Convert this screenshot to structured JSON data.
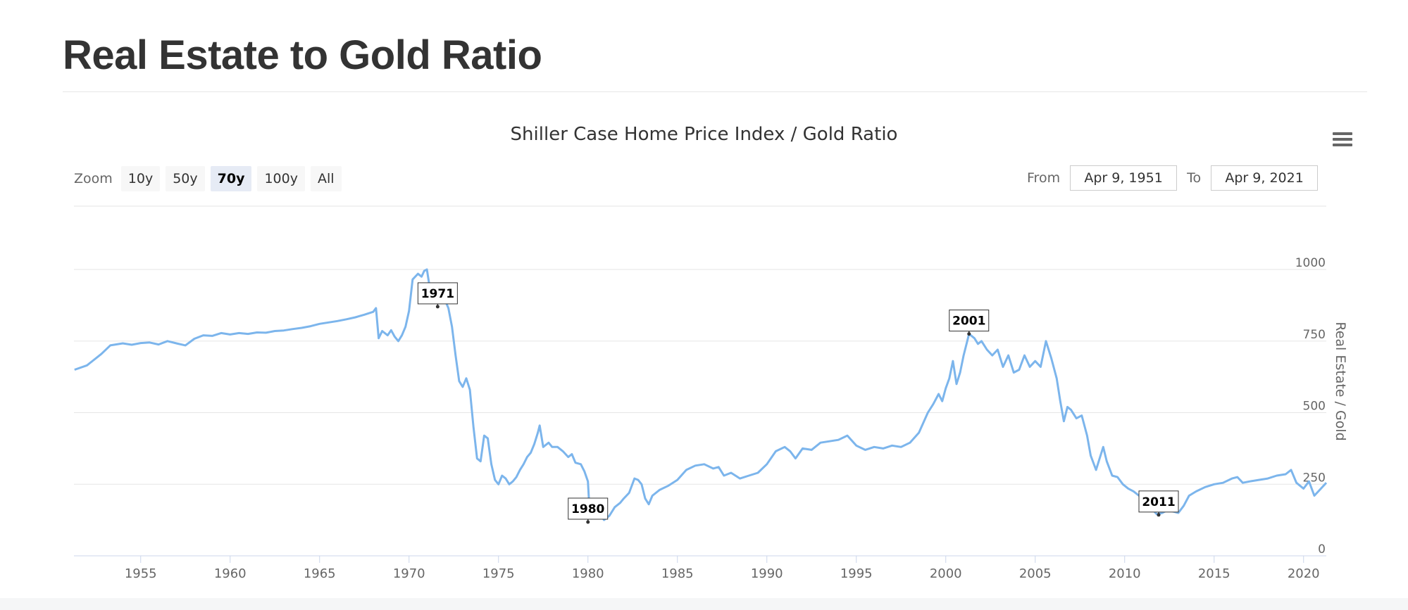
{
  "page": {
    "title": "Real Estate to Gold Ratio"
  },
  "controls": {
    "zoom_label": "Zoom",
    "zoom_buttons": [
      "10y",
      "50y",
      "70y",
      "100y",
      "All"
    ],
    "zoom_active": "70y",
    "from_label": "From",
    "from_value": "Apr 9, 1951",
    "to_label": "To",
    "to_value": "Apr 9, 2021",
    "menu_icon": "hamburger-menu-icon"
  },
  "chart_data": {
    "type": "line",
    "title": "Shiller Case Home Price Index / Gold Ratio",
    "xlabel": "",
    "ylabel": "Real Estate / Gold",
    "xlim": [
      1951.27,
      2021.27
    ],
    "ylim": [
      0,
      1000
    ],
    "x_ticks": [
      "1955",
      "1960",
      "1965",
      "1970",
      "1975",
      "1980",
      "1985",
      "1990",
      "1995",
      "2000",
      "2005",
      "2010",
      "2015",
      "2020"
    ],
    "y_ticks": [
      "0",
      "250",
      "500",
      "750",
      "1000"
    ],
    "grid": true,
    "line_color": "#7cb5ec",
    "series": [
      {
        "values": [
          [
            1951.3,
            650
          ],
          [
            1952.0,
            665
          ],
          [
            1952.8,
            705
          ],
          [
            1953.3,
            735
          ],
          [
            1954.0,
            742
          ],
          [
            1954.5,
            737
          ],
          [
            1955.0,
            743
          ],
          [
            1955.5,
            745
          ],
          [
            1956.0,
            738
          ],
          [
            1956.5,
            750
          ],
          [
            1957.0,
            742
          ],
          [
            1957.5,
            735
          ],
          [
            1958.0,
            758
          ],
          [
            1958.5,
            770
          ],
          [
            1959.0,
            768
          ],
          [
            1959.5,
            778
          ],
          [
            1960.0,
            773
          ],
          [
            1960.5,
            778
          ],
          [
            1961.0,
            775
          ],
          [
            1961.5,
            780
          ],
          [
            1962.0,
            779
          ],
          [
            1962.5,
            785
          ],
          [
            1963.0,
            787
          ],
          [
            1963.5,
            792
          ],
          [
            1964.0,
            796
          ],
          [
            1964.5,
            802
          ],
          [
            1965.0,
            810
          ],
          [
            1965.5,
            815
          ],
          [
            1966.0,
            820
          ],
          [
            1966.5,
            826
          ],
          [
            1967.0,
            833
          ],
          [
            1967.5,
            842
          ],
          [
            1968.0,
            852
          ],
          [
            1968.15,
            865
          ],
          [
            1968.3,
            760
          ],
          [
            1968.5,
            785
          ],
          [
            1968.8,
            770
          ],
          [
            1969.0,
            788
          ],
          [
            1969.2,
            765
          ],
          [
            1969.4,
            750
          ],
          [
            1969.6,
            770
          ],
          [
            1969.8,
            800
          ],
          [
            1970.0,
            855
          ],
          [
            1970.2,
            965
          ],
          [
            1970.5,
            985
          ],
          [
            1970.7,
            975
          ],
          [
            1970.85,
            995
          ],
          [
            1971.0,
            1000
          ],
          [
            1971.2,
            920
          ],
          [
            1971.5,
            895
          ],
          [
            1971.8,
            900
          ],
          [
            1972.0,
            895
          ],
          [
            1972.2,
            865
          ],
          [
            1972.4,
            800
          ],
          [
            1972.6,
            700
          ],
          [
            1972.8,
            610
          ],
          [
            1973.0,
            590
          ],
          [
            1973.2,
            620
          ],
          [
            1973.4,
            580
          ],
          [
            1973.6,
            450
          ],
          [
            1973.8,
            340
          ],
          [
            1974.0,
            330
          ],
          [
            1974.2,
            420
          ],
          [
            1974.4,
            410
          ],
          [
            1974.6,
            320
          ],
          [
            1974.8,
            265
          ],
          [
            1975.0,
            250
          ],
          [
            1975.2,
            280
          ],
          [
            1975.4,
            270
          ],
          [
            1975.6,
            250
          ],
          [
            1975.8,
            260
          ],
          [
            1976.0,
            275
          ],
          [
            1976.2,
            300
          ],
          [
            1976.4,
            320
          ],
          [
            1976.6,
            345
          ],
          [
            1976.8,
            360
          ],
          [
            1977.0,
            390
          ],
          [
            1977.2,
            430
          ],
          [
            1977.3,
            455
          ],
          [
            1977.5,
            380
          ],
          [
            1977.8,
            395
          ],
          [
            1978.0,
            380
          ],
          [
            1978.3,
            380
          ],
          [
            1978.6,
            365
          ],
          [
            1978.9,
            345
          ],
          [
            1979.1,
            355
          ],
          [
            1979.3,
            325
          ],
          [
            1979.6,
            320
          ],
          [
            1979.8,
            295
          ],
          [
            1980.0,
            260
          ],
          [
            1980.1,
            145
          ],
          [
            1980.2,
            130
          ],
          [
            1980.3,
            180
          ],
          [
            1980.6,
            150
          ],
          [
            1980.9,
            125
          ],
          [
            1981.2,
            140
          ],
          [
            1981.5,
            170
          ],
          [
            1981.8,
            185
          ],
          [
            1982.0,
            200
          ],
          [
            1982.3,
            220
          ],
          [
            1982.6,
            270
          ],
          [
            1982.8,
            265
          ],
          [
            1983.0,
            250
          ],
          [
            1983.2,
            200
          ],
          [
            1983.4,
            180
          ],
          [
            1983.6,
            210
          ],
          [
            1984.0,
            230
          ],
          [
            1984.5,
            245
          ],
          [
            1985.0,
            265
          ],
          [
            1985.5,
            300
          ],
          [
            1986.0,
            315
          ],
          [
            1986.5,
            320
          ],
          [
            1987.0,
            305
          ],
          [
            1987.3,
            310
          ],
          [
            1987.6,
            280
          ],
          [
            1988.0,
            290
          ],
          [
            1988.5,
            270
          ],
          [
            1989.0,
            280
          ],
          [
            1989.5,
            290
          ],
          [
            1990.0,
            320
          ],
          [
            1990.5,
            365
          ],
          [
            1991.0,
            380
          ],
          [
            1991.3,
            365
          ],
          [
            1991.6,
            340
          ],
          [
            1992.0,
            375
          ],
          [
            1992.5,
            370
          ],
          [
            1993.0,
            395
          ],
          [
            1993.5,
            400
          ],
          [
            1994.0,
            405
          ],
          [
            1994.5,
            420
          ],
          [
            1995.0,
            385
          ],
          [
            1995.5,
            370
          ],
          [
            1996.0,
            380
          ],
          [
            1996.5,
            375
          ],
          [
            1997.0,
            385
          ],
          [
            1997.5,
            380
          ],
          [
            1998.0,
            395
          ],
          [
            1998.5,
            430
          ],
          [
            1999.0,
            500
          ],
          [
            1999.3,
            530
          ],
          [
            1999.6,
            565
          ],
          [
            1999.8,
            540
          ],
          [
            2000.0,
            585
          ],
          [
            2000.2,
            620
          ],
          [
            2000.4,
            680
          ],
          [
            2000.6,
            600
          ],
          [
            2000.8,
            640
          ],
          [
            2001.0,
            700
          ],
          [
            2001.3,
            775
          ],
          [
            2001.6,
            760
          ],
          [
            2001.8,
            740
          ],
          [
            2002.0,
            750
          ],
          [
            2002.3,
            720
          ],
          [
            2002.6,
            700
          ],
          [
            2002.9,
            720
          ],
          [
            2003.2,
            660
          ],
          [
            2003.5,
            700
          ],
          [
            2003.8,
            640
          ],
          [
            2004.1,
            650
          ],
          [
            2004.4,
            700
          ],
          [
            2004.7,
            660
          ],
          [
            2005.0,
            680
          ],
          [
            2005.3,
            660
          ],
          [
            2005.6,
            750
          ],
          [
            2005.9,
            690
          ],
          [
            2006.2,
            620
          ],
          [
            2006.4,
            540
          ],
          [
            2006.6,
            470
          ],
          [
            2006.8,
            520
          ],
          [
            2007.0,
            510
          ],
          [
            2007.3,
            480
          ],
          [
            2007.6,
            490
          ],
          [
            2007.9,
            420
          ],
          [
            2008.1,
            350
          ],
          [
            2008.4,
            300
          ],
          [
            2008.6,
            340
          ],
          [
            2008.8,
            380
          ],
          [
            2009.0,
            330
          ],
          [
            2009.3,
            280
          ],
          [
            2009.6,
            275
          ],
          [
            2009.9,
            250
          ],
          [
            2010.2,
            235
          ],
          [
            2010.5,
            225
          ],
          [
            2010.8,
            210
          ],
          [
            2011.2,
            195
          ],
          [
            2011.5,
            165
          ],
          [
            2011.8,
            145
          ],
          [
            2012.1,
            150
          ],
          [
            2012.4,
            160
          ],
          [
            2012.7,
            155
          ],
          [
            2013.0,
            150
          ],
          [
            2013.3,
            175
          ],
          [
            2013.6,
            210
          ],
          [
            2014.0,
            225
          ],
          [
            2014.5,
            240
          ],
          [
            2015.0,
            250
          ],
          [
            2015.5,
            255
          ],
          [
            2016.0,
            270
          ],
          [
            2016.3,
            275
          ],
          [
            2016.6,
            255
          ],
          [
            2017.0,
            260
          ],
          [
            2017.5,
            265
          ],
          [
            2018.0,
            270
          ],
          [
            2018.5,
            280
          ],
          [
            2019.0,
            285
          ],
          [
            2019.3,
            300
          ],
          [
            2019.6,
            255
          ],
          [
            2020.0,
            235
          ],
          [
            2020.3,
            260
          ],
          [
            2020.6,
            210
          ],
          [
            2020.9,
            230
          ],
          [
            2021.27,
            255
          ]
        ]
      }
    ],
    "annotations": [
      {
        "label": "1971",
        "x": 1971.6,
        "y": 870
      },
      {
        "label": "1980",
        "x": 1980.0,
        "y": 118
      },
      {
        "label": "2001",
        "x": 2001.3,
        "y": 775
      },
      {
        "label": "2011",
        "x": 2011.9,
        "y": 143
      }
    ]
  }
}
